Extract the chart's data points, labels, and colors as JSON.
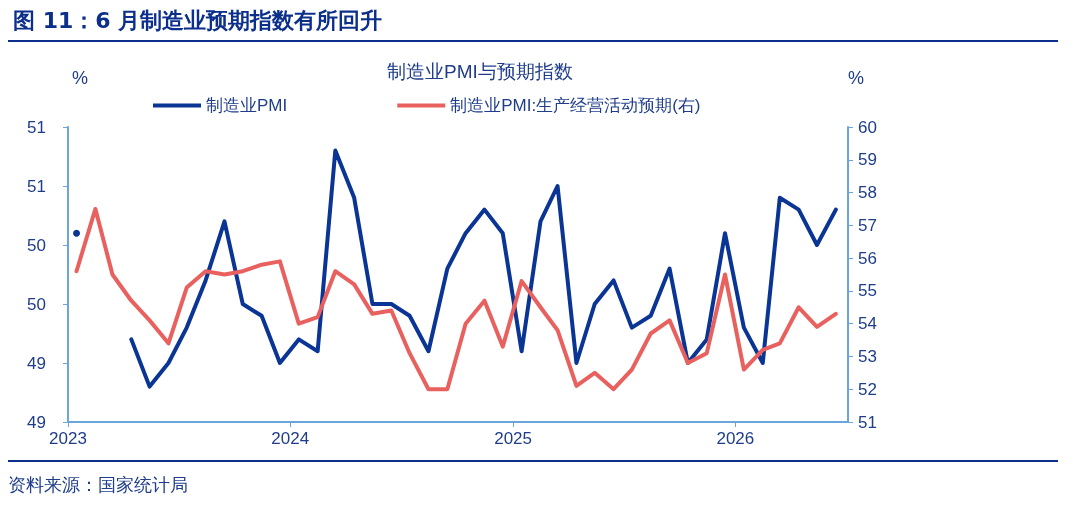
{
  "chart_data": {
    "type": "line",
    "title": "图 11：6 月制造业预期指数有所回升",
    "subtitle": "制造业PMI与预期指数",
    "ylabel": "%",
    "y2label": "%",
    "annotations": [
      "资料来源：国家统计局"
    ],
    "x": [
      "2023-01-15",
      "2023-02-15",
      "2023-03-15",
      "2023-04-15",
      "2023-05-15",
      "2023-06-15",
      "2023-07-15",
      "2023-08-15",
      "2023-09-15",
      "2023-10-15",
      "2023-11-15",
      "2023-12-15",
      "2024-01-15",
      "2024-02-15",
      "2024-03-15",
      "2024-04-15",
      "2024-05-15",
      "2024-06-15",
      "2024-07-15",
      "2024-08-15",
      "2024-09-15",
      "2024-10-15",
      "2024-11-15",
      "2024-12-15",
      "2025-01-15",
      "2025-02-15",
      "2025-03-15",
      "2025-04-15",
      "2025-05-15",
      "2025-06-15",
      "2025-07-15",
      "2025-08-15",
      "2025-09-15",
      "2025-10-15",
      "2025-11-15",
      "2025-12-15",
      "2026-01-15",
      "2026-02-15",
      "2026-03-15",
      "2026-04-15",
      "2026-05-15",
      "2026-06-15"
    ],
    "series": [
      {
        "name": "制造业PMI",
        "color": "#0a3595",
        "values": [
          50.1,
          null,
          null,
          49.2,
          48.8,
          49.0,
          49.3,
          49.7,
          50.2,
          49.5,
          49.4,
          49.0,
          49.2,
          49.1,
          50.8,
          50.4,
          49.5,
          49.5,
          49.4,
          49.1,
          49.8,
          50.1,
          50.3,
          50.1,
          49.1,
          50.2,
          50.5,
          49.0,
          49.5,
          49.7,
          49.3,
          49.4,
          49.8,
          49.0,
          49.2,
          50.1,
          49.3,
          49.0,
          50.4,
          50.3,
          50.0,
          50.3
        ]
      },
      {
        "name": "制造业PMI:生产经营活动预期(右)",
        "color": "#e8615f",
        "axis": "y2",
        "values": [
          55.6,
          57.5,
          55.5,
          54.7,
          54.1,
          53.4,
          55.1,
          55.6,
          55.5,
          55.6,
          55.8,
          55.9,
          54.0,
          54.2,
          55.6,
          55.2,
          54.3,
          54.4,
          53.1,
          52.0,
          52.0,
          54.0,
          54.7,
          53.3,
          55.3,
          54.5,
          53.8,
          52.1,
          52.5,
          52.0,
          52.6,
          53.7,
          54.1,
          52.8,
          53.1,
          55.5,
          52.6,
          53.2,
          53.4,
          54.5,
          53.9,
          54.3
        ]
      }
    ],
    "xlim": [
      "2023-01-01",
      "2026-07-05"
    ],
    "xticks": [
      {
        "value": "2023-01-01",
        "label": "2023"
      },
      {
        "value": "2024-01-01",
        "label": "2024"
      },
      {
        "value": "2025-01-01",
        "label": "2025"
      },
      {
        "value": "2026-01-01",
        "label": "2026"
      }
    ],
    "ylim": [
      48.5,
      51
    ],
    "yticks": [
      {
        "value": 48.5,
        "label": "49"
      },
      {
        "value": 49,
        "label": "49"
      },
      {
        "value": 49.5,
        "label": "50"
      },
      {
        "value": 50,
        "label": "50"
      },
      {
        "value": 50.5,
        "label": "51"
      },
      {
        "value": 51,
        "label": "51"
      }
    ],
    "y2lim": [
      51,
      60
    ],
    "y2ticks": [
      51,
      52,
      53,
      54,
      55,
      56,
      57,
      58,
      59,
      60
    ],
    "legend": "top",
    "marker": "none",
    "line_style": "solid"
  }
}
